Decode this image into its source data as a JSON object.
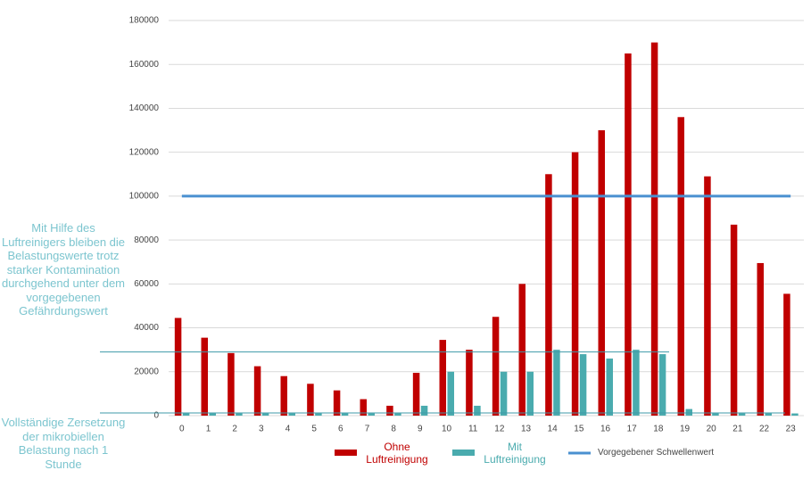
{
  "chart_data": {
    "type": "bar",
    "categories": [
      "0",
      "1",
      "2",
      "3",
      "4",
      "5",
      "6",
      "7",
      "8",
      "9",
      "10",
      "11",
      "12",
      "13",
      "14",
      "15",
      "16",
      "17",
      "18",
      "19",
      "20",
      "21",
      "22",
      "23"
    ],
    "series": [
      {
        "name": "Ohne Luftreinigung",
        "color": "#c00000",
        "values": [
          44500,
          35500,
          28500,
          22500,
          18000,
          14500,
          11500,
          7500,
          4500,
          19500,
          34500,
          30000,
          45000,
          60000,
          110000,
          120000,
          130000,
          165000,
          170000,
          136000,
          109000,
          87000,
          69500,
          55500
        ]
      },
      {
        "name": "Mit Luftreinigung",
        "color": "#4aabae",
        "values": [
          1000,
          1000,
          1000,
          1000,
          1000,
          1000,
          1000,
          1000,
          1000,
          4500,
          20000,
          4500,
          20000,
          20000,
          30000,
          28000,
          26000,
          30000,
          28000,
          3000,
          1000,
          1000,
          1000,
          1000
        ]
      },
      {
        "name": "Vorgegebener Schwellenwert",
        "color": "#4a90d0",
        "type": "line",
        "values": [
          100000,
          100000,
          100000,
          100000,
          100000,
          100000,
          100000,
          100000,
          100000,
          100000,
          100000,
          100000,
          100000,
          100000,
          100000,
          100000,
          100000,
          100000,
          100000,
          100000,
          100000,
          100000,
          100000,
          100000
        ]
      }
    ],
    "ylim": [
      0,
      180000
    ],
    "yticks": [
      0,
      20000,
      40000,
      60000,
      80000,
      100000,
      120000,
      140000,
      160000,
      180000
    ],
    "grid": true,
    "annotations": [
      {
        "text": "Mit Hilfe des Luftreinigers bleiben die Belastungswerte trotz starker Kontamination durchgehend unter dem vorgegebenen Gefährdungswert",
        "y": 29000
      },
      {
        "text": "Vollständige Zersetzung der mikrobiellen Belastung nach 1 Stunde",
        "y": 1200
      }
    ],
    "legend": "bottom"
  }
}
